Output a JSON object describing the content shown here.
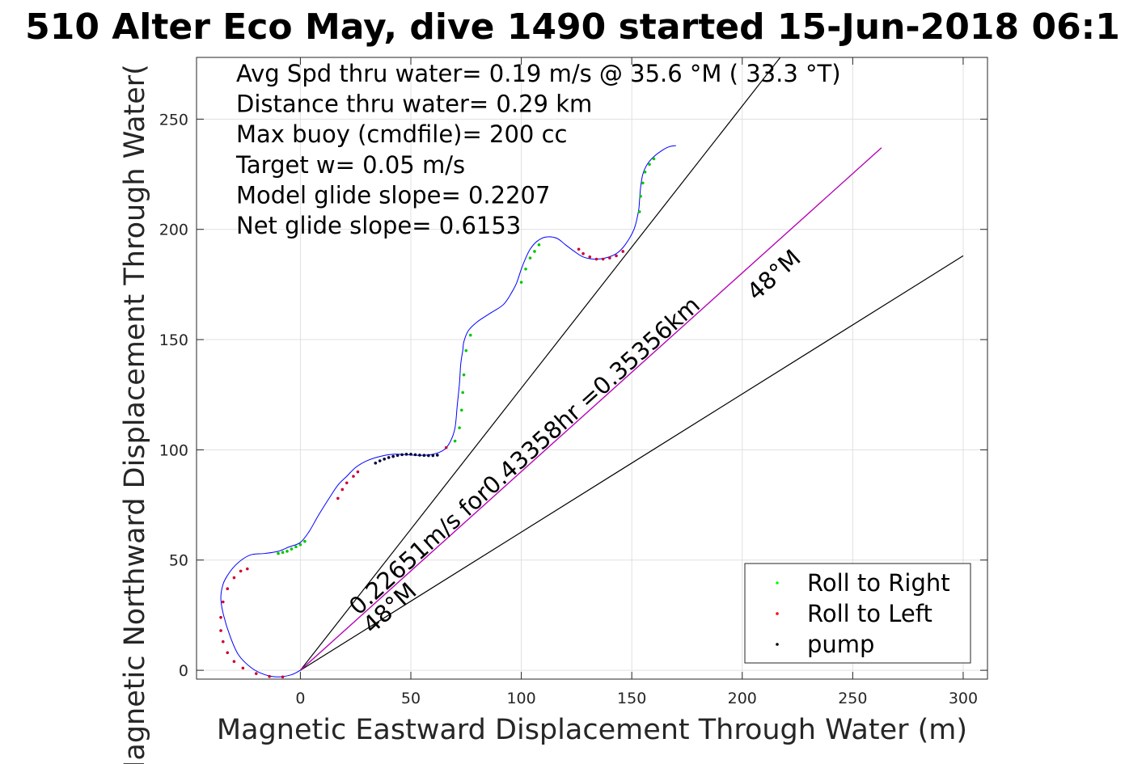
{
  "chart_data": {
    "type": "line",
    "title": "510 Alter Eco May, dive 1490 started 15-Jun-2018 06:1",
    "xlabel": "Magnetic Eastward Displacement Through Water (m)",
    "ylabel": "Magnetic Northward Displacement Through Water(",
    "xlim": [
      -47,
      311
    ],
    "ylim": [
      -4,
      278
    ],
    "xticks": [
      0,
      50,
      100,
      150,
      200,
      250,
      300
    ],
    "yticks": [
      0,
      50,
      100,
      150,
      200,
      250
    ],
    "xtick_labels": [
      "0",
      "50",
      "100",
      "150",
      "200",
      "250",
      "300"
    ],
    "ytick_labels": [
      "0",
      "50",
      "100",
      "150",
      "200",
      "250"
    ],
    "grid": true,
    "legend_position": "bottom-right",
    "annotations": [
      "Avg Spd thru water=  0.19 m/s @  35.6 °M ( 33.3 °T)",
      "Distance thru water=  0.29 km",
      "Max buoy (cmdfile)= 200 cc",
      "Target w= 0.05 m/s",
      "Model glide slope= 0.2207",
      "Net glide slope= 0.6153"
    ],
    "line_labels": {
      "current": "0.22651m/s for0.43358hr =0.35356km",
      "heading_upper": "48°M",
      "heading_lower": "48°M"
    },
    "legend": [
      {
        "label": "Roll to Right",
        "color": "#00ff00"
      },
      {
        "label": "Roll to Left",
        "color": "#ff0000"
      },
      {
        "label": "pump",
        "color": "#000000"
      }
    ],
    "colors": {
      "track": "#0000ff",
      "current_line": "#cc00cc",
      "heading_lines": "#000000",
      "grid": "#e0e0e0"
    },
    "track": {
      "x": [
        0,
        -4,
        -10,
        -16,
        -22,
        -28,
        -32,
        -35,
        -36,
        -35,
        -33,
        -30,
        -26,
        -22,
        -16,
        -10,
        -5,
        0,
        4,
        8,
        13,
        17,
        21,
        25,
        30,
        36,
        42,
        48,
        54,
        60,
        65,
        68,
        70,
        71,
        72,
        72.5,
        73,
        73.5,
        74,
        76,
        80,
        86,
        92,
        96,
        98,
        100,
        102,
        104,
        107,
        111,
        116,
        120,
        124,
        128,
        133,
        138,
        143,
        147,
        151,
        153,
        153.5,
        154,
        155,
        157,
        160,
        164,
        167,
        170
      ],
      "y": [
        0,
        -2,
        -3,
        -2,
        1,
        7,
        16,
        26,
        33,
        39,
        43,
        47,
        50.5,
        52.5,
        53,
        54,
        56,
        58,
        63,
        70,
        78,
        84,
        88,
        92,
        95,
        97,
        98,
        97.8,
        97.5,
        98,
        100,
        104,
        110,
        120,
        130,
        138,
        142,
        145,
        149,
        154,
        158,
        162,
        166,
        172,
        176,
        182,
        187,
        191,
        194.5,
        196.5,
        196,
        193,
        190,
        187.5,
        186.5,
        187,
        189,
        193,
        200,
        208,
        213,
        219,
        225,
        229.5,
        233,
        236,
        237.5,
        238
      ]
    },
    "points": {
      "roll_right": {
        "x": [
          -10,
          -8,
          -6,
          -4,
          -2,
          0,
          2,
          70,
          72,
          73,
          73.5,
          74,
          75,
          77,
          100,
          102,
          104,
          106,
          108,
          153.5,
          154,
          155,
          156,
          158,
          160
        ],
        "y": [
          53,
          53.5,
          54,
          55,
          56,
          57,
          58.5,
          104,
          110,
          118,
          126,
          134,
          145,
          152,
          176,
          182,
          187,
          190,
          193,
          208,
          215,
          221,
          226,
          229.5,
          232
        ]
      },
      "roll_left": {
        "x": [
          -27,
          -24,
          -30,
          -33,
          -35,
          -36,
          -36,
          -35,
          -33,
          -30,
          -26,
          -20,
          -14,
          -8,
          17,
          19,
          21,
          24,
          26,
          66,
          126,
          128,
          131,
          134,
          137,
          140,
          143,
          146
        ],
        "y": [
          45,
          46,
          42,
          37,
          31,
          24,
          18,
          13,
          8,
          4,
          1,
          -1.5,
          -2.8,
          -3,
          78,
          82,
          85,
          88,
          90,
          101,
          191,
          189,
          187.5,
          186.5,
          186.5,
          187,
          188,
          190
        ],
        "pump_x": [
          34,
          36,
          38,
          40,
          42,
          44,
          46,
          48,
          50,
          52,
          54,
          56,
          58,
          60,
          62
        ],
        "pump_y": [
          94,
          95,
          95.8,
          96.5,
          97,
          97.5,
          97.8,
          98,
          98,
          97.8,
          97.6,
          97.5,
          97.4,
          97.4,
          97.6
        ]
      }
    },
    "lines": {
      "current": {
        "x": [
          0,
          263
        ],
        "y": [
          0,
          237
        ]
      },
      "heading_steep": {
        "x": [
          0,
          218
        ],
        "y": [
          0,
          279
        ]
      },
      "heading_shallow": {
        "x": [
          0,
          300
        ],
        "y": [
          0,
          188
        ]
      }
    }
  }
}
